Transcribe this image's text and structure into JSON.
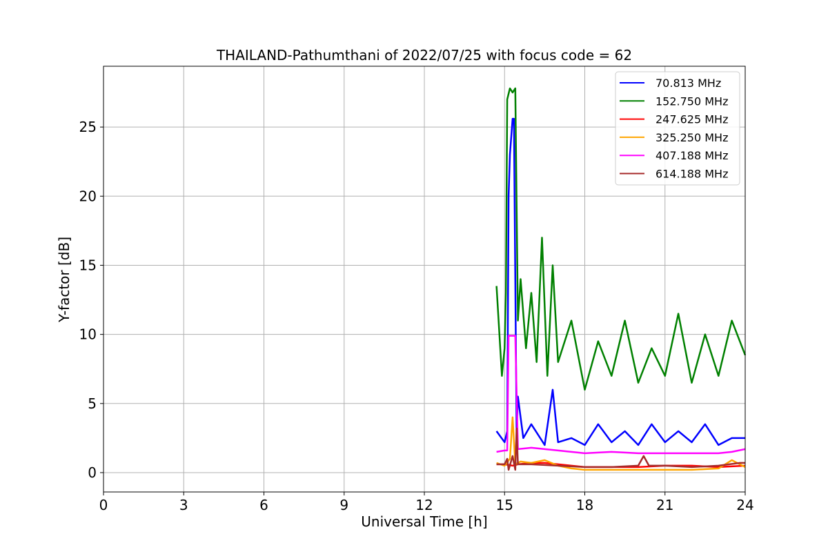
{
  "chart_data": {
    "type": "line",
    "title": "THAILAND-Pathumthani of 2022/07/25 with focus code = 62",
    "xlabel": "Universal Time [h]",
    "ylabel": "Y-factor [dB]",
    "xlim": [
      0,
      24
    ],
    "ylim": [
      -1.4,
      29.4
    ],
    "xticks": [
      0,
      3,
      6,
      9,
      12,
      15,
      18,
      21,
      24
    ],
    "yticks": [
      0,
      5,
      10,
      15,
      20,
      25
    ],
    "grid": true,
    "legend_position": "top-right",
    "series": [
      {
        "name": " 70.813 MHz",
        "color": "#0000ff",
        "x": [
          14.7,
          15.0,
          15.1,
          15.15,
          15.2,
          15.3,
          15.35,
          15.45,
          15.5,
          15.7,
          16.0,
          16.5,
          16.8,
          17.0,
          17.5,
          18.0,
          18.5,
          19.0,
          19.5,
          20.0,
          20.5,
          21.0,
          21.5,
          22.0,
          22.5,
          23.0,
          23.5,
          24.0
        ],
        "y": [
          3.0,
          2.2,
          3.0,
          20.0,
          23.0,
          25.6,
          25.6,
          3.0,
          5.5,
          2.5,
          3.5,
          2.0,
          6.0,
          2.2,
          2.5,
          2.0,
          3.5,
          2.2,
          3.0,
          2.0,
          3.5,
          2.2,
          3.0,
          2.2,
          3.5,
          2.0,
          2.5,
          2.5
        ]
      },
      {
        "name": "152.750 MHz",
        "color": "#008000",
        "x": [
          14.7,
          14.9,
          15.0,
          15.05,
          15.1,
          15.2,
          15.3,
          15.4,
          15.5,
          15.6,
          15.8,
          16.0,
          16.2,
          16.4,
          16.6,
          16.8,
          17.0,
          17.5,
          18.0,
          18.5,
          19.0,
          19.5,
          20.0,
          20.5,
          21.0,
          21.5,
          22.0,
          22.5,
          23.0,
          23.5,
          24.0
        ],
        "y": [
          13.5,
          7.0,
          9.0,
          13.0,
          27.0,
          27.8,
          27.5,
          27.8,
          11.0,
          14.0,
          9.0,
          13.0,
          8.0,
          17.0,
          7.0,
          15.0,
          8.0,
          11.0,
          6.0,
          9.5,
          7.0,
          11.0,
          6.5,
          9.0,
          7.0,
          11.5,
          6.5,
          10.0,
          7.0,
          11.0,
          8.5
        ]
      },
      {
        "name": "247.625 MHz",
        "color": "#ff0000",
        "x": [
          14.7,
          15.0,
          15.3,
          15.5,
          16.0,
          16.5,
          17.0,
          17.5,
          18.0,
          19.0,
          20.0,
          21.0,
          22.0,
          23.0,
          24.0
        ],
        "y": [
          0.6,
          0.6,
          0.5,
          0.6,
          0.7,
          0.7,
          0.6,
          0.5,
          0.4,
          0.4,
          0.4,
          0.5,
          0.5,
          0.4,
          0.5
        ]
      },
      {
        "name": "325.250 MHz",
        "color": "#ffa500",
        "x": [
          14.7,
          15.0,
          15.2,
          15.3,
          15.4,
          15.6,
          16.0,
          16.5,
          17.0,
          17.5,
          18.0,
          19.0,
          20.0,
          21.0,
          22.0,
          23.0,
          23.5,
          24.0
        ],
        "y": [
          0.7,
          0.5,
          1.0,
          4.0,
          0.6,
          0.8,
          0.7,
          0.9,
          0.5,
          0.3,
          0.2,
          0.2,
          0.2,
          0.2,
          0.2,
          0.3,
          0.9,
          0.4
        ]
      },
      {
        "name": "407.188 MHz",
        "color": "#ff00ff",
        "x": [
          14.7,
          15.0,
          15.1,
          15.15,
          15.4,
          15.5,
          16.0,
          16.5,
          17.0,
          18.0,
          19.0,
          20.0,
          21.0,
          22.0,
          23.0,
          23.5,
          24.0
        ],
        "y": [
          1.5,
          1.6,
          1.6,
          9.9,
          9.9,
          1.7,
          1.8,
          1.7,
          1.6,
          1.4,
          1.5,
          1.4,
          1.4,
          1.4,
          1.4,
          1.5,
          1.7
        ]
      },
      {
        "name": "614.188 MHz",
        "color": "#a52a2a",
        "x": [
          14.7,
          15.0,
          15.1,
          15.15,
          15.3,
          15.4,
          15.45,
          15.5,
          16.0,
          17.0,
          18.0,
          19.0,
          20.0,
          20.2,
          20.4,
          21.0,
          22.0,
          23.0,
          23.8,
          24.0
        ],
        "y": [
          0.6,
          0.6,
          1.0,
          0.2,
          1.2,
          0.2,
          3.2,
          0.6,
          0.6,
          0.5,
          0.4,
          0.4,
          0.5,
          1.2,
          0.5,
          0.5,
          0.4,
          0.5,
          0.7,
          0.7
        ]
      }
    ]
  }
}
